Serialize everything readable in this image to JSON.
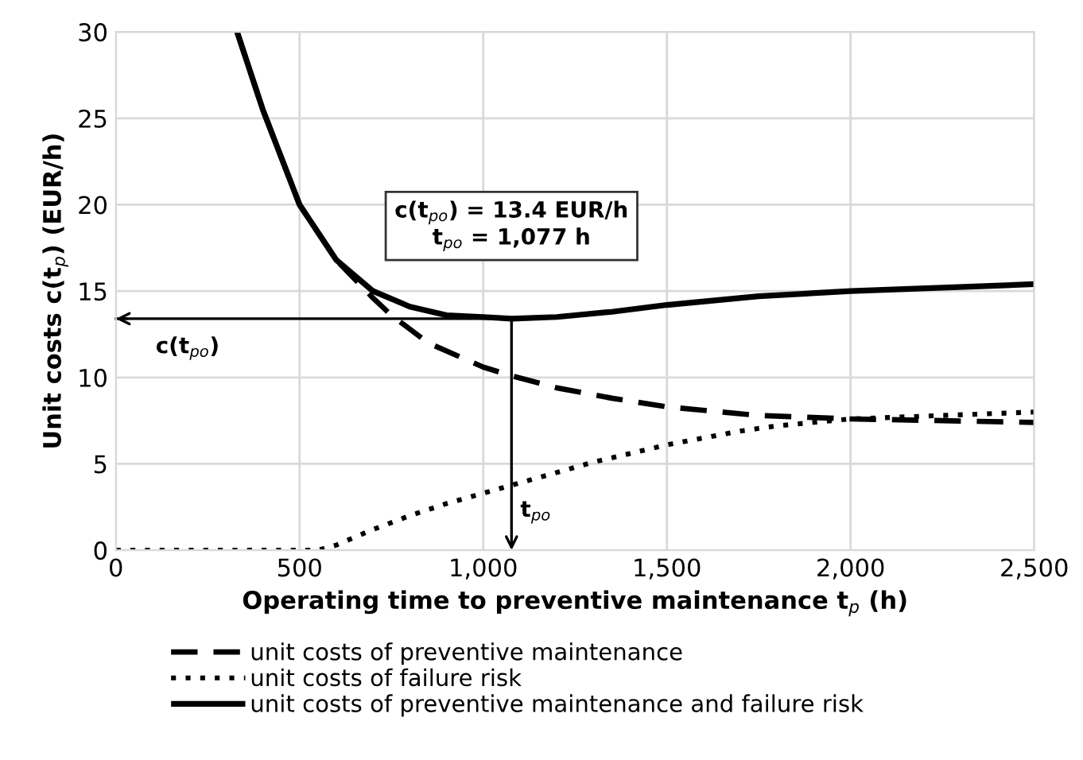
{
  "chart_data": {
    "type": "line",
    "xlabel": "Operating time to preventive maintenance t$_{p}$ (h)",
    "ylabel": "Unit costs c(t$_{p}$) (EUR/h)",
    "xlim": [
      0,
      2500
    ],
    "xticks": [
      0,
      {
        "value": 500,
        "label": "500"
      },
      {
        "value": 1000,
        "label": "1,000"
      },
      {
        "value": 1500,
        "label": "1,500"
      },
      {
        "value": 2000,
        "label": "2,000"
      },
      {
        "value": 2500,
        "label": "2,500"
      }
    ],
    "ylim": [
      0,
      30
    ],
    "yticks": [
      0,
      5,
      10,
      15,
      20,
      25,
      30
    ],
    "grid": true,
    "legend": "bottom",
    "marker": "none",
    "series": [
      {
        "name": "unit costs of preventive maintenance",
        "color": "#000000",
        "line_style": "dashed",
        "x": [
          330,
          400,
          500,
          600,
          700,
          750,
          850,
          1000,
          1077,
          1200,
          1350,
          1500,
          1750,
          2000,
          2250,
          2500
        ],
        "values": [
          30,
          25.5,
          20,
          16.8,
          14.6,
          13.6,
          12,
          10.6,
          10.1,
          9.4,
          8.8,
          8.3,
          7.8,
          7.6,
          7.5,
          7.4
        ]
      },
      {
        "name": "unit costs of failure risk",
        "color": "#000000",
        "line_style": "dotted",
        "x": [
          0,
          250,
          550,
          600,
          700,
          800,
          900,
          1000,
          1100,
          1200,
          1300,
          1400,
          1500,
          1600,
          1700,
          1800,
          1900,
          2000,
          2250,
          2500
        ],
        "values": [
          0,
          0,
          0,
          0.3,
          1.2,
          2,
          2.7,
          3.3,
          3.9,
          4.5,
          5.1,
          5.6,
          6.1,
          6.5,
          6.9,
          7.2,
          7.4,
          7.6,
          7.8,
          8.0
        ]
      },
      {
        "name": "unit costs of preventive maintenance and failure risk",
        "color": "#000000",
        "line_style": "solid",
        "x": [
          330,
          400,
          500,
          600,
          700,
          800,
          900,
          1000,
          1077,
          1200,
          1350,
          1500,
          1750,
          2000,
          2250,
          2500
        ],
        "values": [
          30,
          25.5,
          20,
          16.8,
          15,
          14.1,
          13.6,
          13.5,
          13.4,
          13.5,
          13.8,
          14.2,
          14.7,
          15.0,
          15.2,
          15.4
        ]
      }
    ],
    "annotations": [
      "c(t$_{po}$) = 13.4 EUR/h\nt$_{po}$ = 1,077 h",
      "t$_{po}$"
    ],
    "ref_lines": [
      {
        "axis": "y",
        "value": 13.4,
        "label": "c(t$_{po}$)"
      }
    ]
  }
}
